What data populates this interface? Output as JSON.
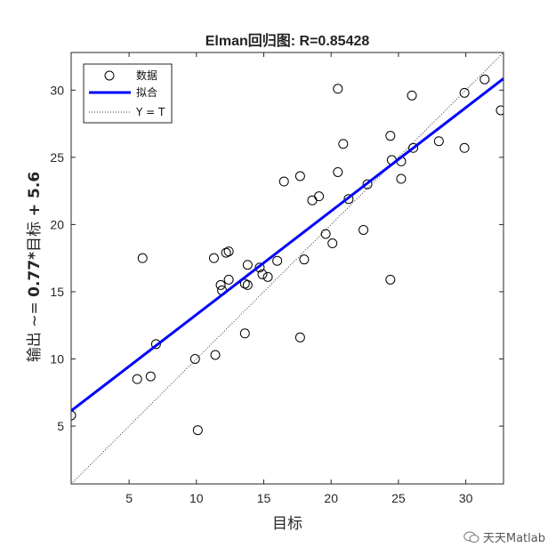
{
  "chart_data": {
    "type": "scatter",
    "title": "Elman回归图: R=0.85428",
    "xlabel": "目标",
    "ylabel_plain": "输出 ~= ",
    "ylabel_bold": "0.77*",
    "ylabel_plain2": "目标",
    "ylabel_bold2": " + 5.6",
    "xlim": [
      0.7,
      32.8
    ],
    "ylim": [
      0.7,
      32.8
    ],
    "xticks": [
      5,
      10,
      15,
      20,
      25,
      30
    ],
    "yticks": [
      5,
      10,
      15,
      20,
      25,
      30
    ],
    "legend": [
      {
        "label": "数据",
        "marker": "circle"
      },
      {
        "label": "拟合",
        "marker": "line"
      },
      {
        "label": "Y = T",
        "marker": "dotted"
      }
    ],
    "legend_position": "top-left",
    "fit": {
      "slope": 0.77,
      "intercept": 5.6
    },
    "colors": {
      "fit_line": "#0000ff",
      "points": "#000000",
      "identity": "#333333"
    },
    "points": [
      [
        0.7,
        5.8
      ],
      [
        5.6,
        8.5
      ],
      [
        6.6,
        8.7
      ],
      [
        7.0,
        11.1
      ],
      [
        6.0,
        17.5
      ],
      [
        9.9,
        10.0
      ],
      [
        10.1,
        4.7
      ],
      [
        11.4,
        10.3
      ],
      [
        11.3,
        17.5
      ],
      [
        11.8,
        15.5
      ],
      [
        11.9,
        15.1
      ],
      [
        12.2,
        17.9
      ],
      [
        12.4,
        18.0
      ],
      [
        12.4,
        15.9
      ],
      [
        13.6,
        11.9
      ],
      [
        13.6,
        15.6
      ],
      [
        13.8,
        17.0
      ],
      [
        13.8,
        15.5
      ],
      [
        14.7,
        16.8
      ],
      [
        14.9,
        16.3
      ],
      [
        15.3,
        16.1
      ],
      [
        16.0,
        17.3
      ],
      [
        16.5,
        23.2
      ],
      [
        17.7,
        23.6
      ],
      [
        18.0,
        17.4
      ],
      [
        17.7,
        11.6
      ],
      [
        18.6,
        21.8
      ],
      [
        19.1,
        22.1
      ],
      [
        19.6,
        19.3
      ],
      [
        20.1,
        18.6
      ],
      [
        20.5,
        23.9
      ],
      [
        20.5,
        30.1
      ],
      [
        20.9,
        26.0
      ],
      [
        21.3,
        21.9
      ],
      [
        22.4,
        19.6
      ],
      [
        22.7,
        23.0
      ],
      [
        24.4,
        15.9
      ],
      [
        24.4,
        26.6
      ],
      [
        24.5,
        24.8
      ],
      [
        25.2,
        24.7
      ],
      [
        25.2,
        23.4
      ],
      [
        26.1,
        25.7
      ],
      [
        26.0,
        29.6
      ],
      [
        28.0,
        26.2
      ],
      [
        29.9,
        29.8
      ],
      [
        29.9,
        25.7
      ],
      [
        31.4,
        30.8
      ],
      [
        32.6,
        28.5
      ]
    ]
  },
  "watermark": {
    "text": "天天Matlab",
    "icon": "wechat-icon"
  }
}
